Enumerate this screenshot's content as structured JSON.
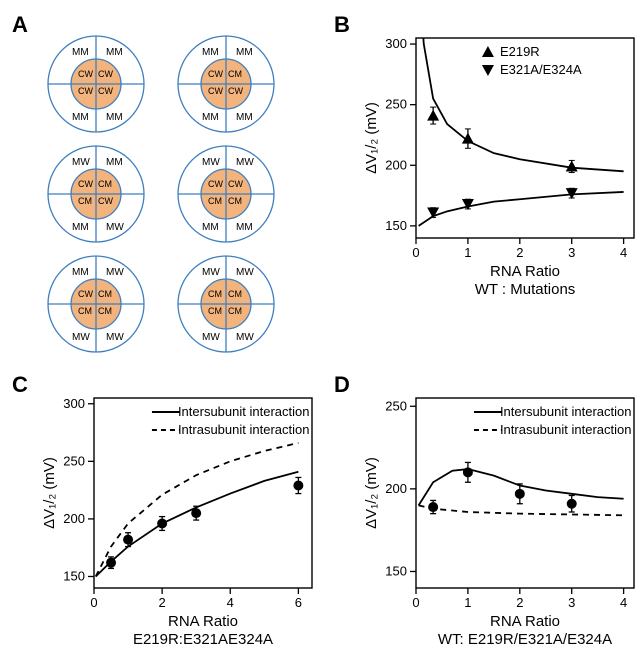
{
  "colors": {
    "outline": "#3f7fbf",
    "inner_fill": "#f2b37c",
    "plot_stroke": "#000000",
    "background": "#ffffff"
  },
  "panelA": {
    "label": "A",
    "cells": [
      {
        "inner": [
          "CW",
          "CW",
          "CW",
          "CW"
        ],
        "outer": [
          "MM",
          "MM",
          "MM",
          "MM"
        ]
      },
      {
        "inner": [
          "CW",
          "CM",
          "CW",
          "CW"
        ],
        "outer": [
          "MM",
          "MM",
          "MM",
          "MM"
        ]
      },
      {
        "inner": [
          "CW",
          "CM",
          "CM",
          "CW"
        ],
        "outer": [
          "MW",
          "MM",
          "MM",
          "MW"
        ]
      },
      {
        "inner": [
          "CW",
          "CW",
          "CM",
          "CM"
        ],
        "outer": [
          "MW",
          "MW",
          "MM",
          "MM"
        ]
      },
      {
        "inner": [
          "CW",
          "CM",
          "CM",
          "CM"
        ],
        "outer": [
          "MM",
          "MW",
          "MW",
          "MW"
        ]
      },
      {
        "inner": [
          "CM",
          "CM",
          "CM",
          "CM"
        ],
        "outer": [
          "MW",
          "MW",
          "MW",
          "MW"
        ]
      }
    ]
  },
  "panelB": {
    "label": "B",
    "title": null,
    "ylabel": "ΔV₁/₂ (mV)",
    "xlabel_top": "RNA Ratio",
    "xlabel_bottom": "WT : Mutations",
    "xlim": [
      0,
      4.2
    ],
    "ylim": [
      140,
      305
    ],
    "xticks": [
      0,
      1,
      2,
      3,
      4
    ],
    "yticks": [
      150,
      200,
      250,
      300
    ],
    "legend": [
      {
        "label": "E219R",
        "marker": "up"
      },
      {
        "label": "E321A/E324A",
        "marker": "down"
      }
    ],
    "series_up": {
      "pts": [
        [
          0.33,
          241,
          7
        ],
        [
          1,
          222,
          8
        ],
        [
          3,
          199,
          5
        ]
      ]
    },
    "series_down": {
      "pts": [
        [
          0.33,
          161,
          4
        ],
        [
          1,
          168,
          4
        ],
        [
          3,
          177,
          4
        ]
      ]
    },
    "curve_up": [
      [
        0.05,
        360
      ],
      [
        0.15,
        300
      ],
      [
        0.33,
        255
      ],
      [
        0.6,
        234
      ],
      [
        1,
        220
      ],
      [
        1.5,
        210
      ],
      [
        2,
        205
      ],
      [
        3,
        198
      ],
      [
        4,
        195
      ]
    ],
    "curve_down": [
      [
        0.05,
        150
      ],
      [
        0.33,
        158
      ],
      [
        0.6,
        162
      ],
      [
        1,
        166
      ],
      [
        1.5,
        170
      ],
      [
        2,
        172
      ],
      [
        3,
        176
      ],
      [
        4,
        178
      ]
    ]
  },
  "panelC": {
    "label": "C",
    "ylabel": "ΔV₁/₂ (mV)",
    "xlabel_top": "RNA Ratio",
    "xlabel_bottom": "E219R:E321AE324A",
    "xlim": [
      0,
      6.4
    ],
    "ylim": [
      140,
      305
    ],
    "xticks": [
      0,
      2,
      4,
      6
    ],
    "yticks": [
      150,
      200,
      250,
      300
    ],
    "legend": [
      {
        "label": "Intersubunit interaction",
        "style": "solid"
      },
      {
        "label": "Intrasubunit interaction",
        "style": "dashed"
      }
    ],
    "points": [
      [
        0.5,
        162,
        5
      ],
      [
        1,
        182,
        6
      ],
      [
        2,
        196,
        6
      ],
      [
        3,
        205,
        6
      ],
      [
        6,
        229,
        7
      ]
    ],
    "curve_solid": [
      [
        0.05,
        150
      ],
      [
        0.5,
        163
      ],
      [
        1,
        176
      ],
      [
        2,
        196
      ],
      [
        3,
        210
      ],
      [
        4,
        222
      ],
      [
        5,
        233
      ],
      [
        6,
        241
      ]
    ],
    "curve_dashed": [
      [
        0.05,
        150
      ],
      [
        0.5,
        176
      ],
      [
        1,
        196
      ],
      [
        2,
        221
      ],
      [
        3,
        238
      ],
      [
        4,
        250
      ],
      [
        5,
        259
      ],
      [
        6,
        266
      ]
    ]
  },
  "panelD": {
    "label": "D",
    "ylabel": "ΔV₁/₂ (mV)",
    "xlabel_top": "RNA Ratio",
    "xlabel_bottom": "WT: E219R/E321A/E324A",
    "xlim": [
      0,
      4.2
    ],
    "ylim": [
      140,
      255
    ],
    "xticks": [
      0,
      1,
      2,
      3,
      4
    ],
    "yticks": [
      150,
      200,
      250
    ],
    "legend": [
      {
        "label": "Intersubunit interaction",
        "style": "solid"
      },
      {
        "label": "Intrasubunit interaction",
        "style": "dashed"
      }
    ],
    "points": [
      [
        0.33,
        189,
        4
      ],
      [
        1,
        210,
        6
      ],
      [
        2,
        197,
        6
      ],
      [
        3,
        191,
        5
      ]
    ],
    "curve_solid": [
      [
        0.05,
        190
      ],
      [
        0.33,
        204
      ],
      [
        0.7,
        211
      ],
      [
        1,
        212
      ],
      [
        1.5,
        208
      ],
      [
        2,
        202
      ],
      [
        2.5,
        199
      ],
      [
        3,
        197
      ],
      [
        3.5,
        195
      ],
      [
        4,
        194
      ]
    ],
    "curve_dashed": [
      [
        0.05,
        190
      ],
      [
        0.33,
        188
      ],
      [
        1,
        186
      ],
      [
        2,
        185
      ],
      [
        3,
        184.5
      ],
      [
        4,
        184
      ]
    ]
  },
  "typography": {
    "panel_label_fontsize": 22,
    "axis_label_fontsize": 14,
    "tick_fontsize": 12,
    "legend_fontsize": 13
  }
}
